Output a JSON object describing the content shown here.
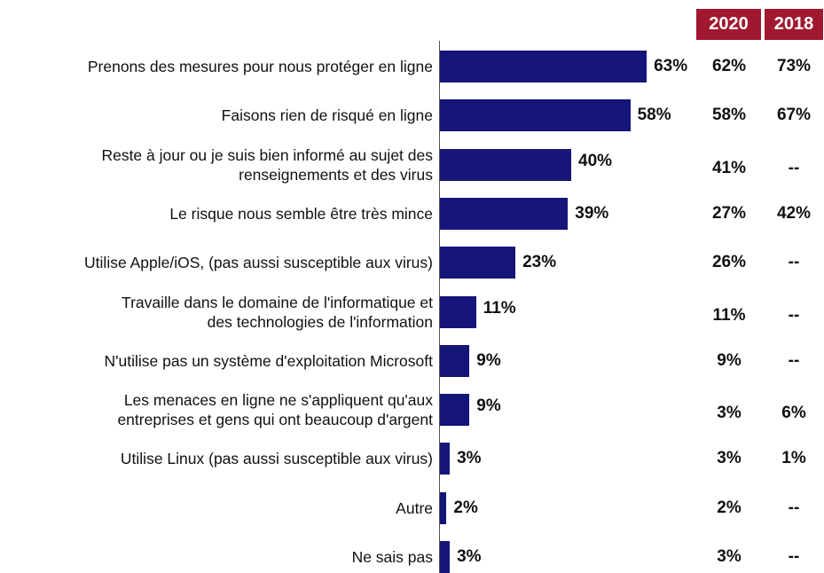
{
  "chart_data": {
    "type": "bar",
    "orientation": "horizontal",
    "color": "#15157a",
    "categories": [
      "Prenons des mesures pour nous protéger en ligne",
      "Faisons rien de risqué en ligne",
      "Reste à jour ou je suis bien informé au sujet des\nrenseignements et des virus",
      "Le risque nous semble être très mince",
      "Utilise Apple/iOS, (pas aussi susceptible aux virus)",
      "Travaille dans le domaine de l'informatique et\ndes technologies de l'information",
      "N'utilise pas un système d'exploitation Microsoft",
      "Les menaces en ligne ne s'appliquent qu'aux\nentreprises et gens qui ont beaucoup d'argent",
      "Utilise Linux (pas aussi susceptible aux virus)",
      "Autre",
      "Ne sais pas"
    ],
    "values": [
      63,
      58,
      40,
      39,
      23,
      11,
      9,
      9,
      3,
      2,
      3
    ],
    "value_labels": [
      "63%",
      "58%",
      "40%",
      "39%",
      "23%",
      "11%",
      "9%",
      "9%",
      "3%",
      "2%",
      "3%"
    ],
    "columns": [
      {
        "name": "2020",
        "color": "#a0182f",
        "values": [
          "62%",
          "58%",
          "41%",
          "27%",
          "26%",
          "11%",
          "9%",
          "3%",
          "3%",
          "2%",
          "3%"
        ]
      },
      {
        "name": "2018",
        "color": "#a0182f",
        "values": [
          "73%",
          "67%",
          "--",
          "42%",
          "--",
          "--",
          "--",
          "6%",
          "1%",
          "--",
          "--"
        ]
      }
    ]
  }
}
